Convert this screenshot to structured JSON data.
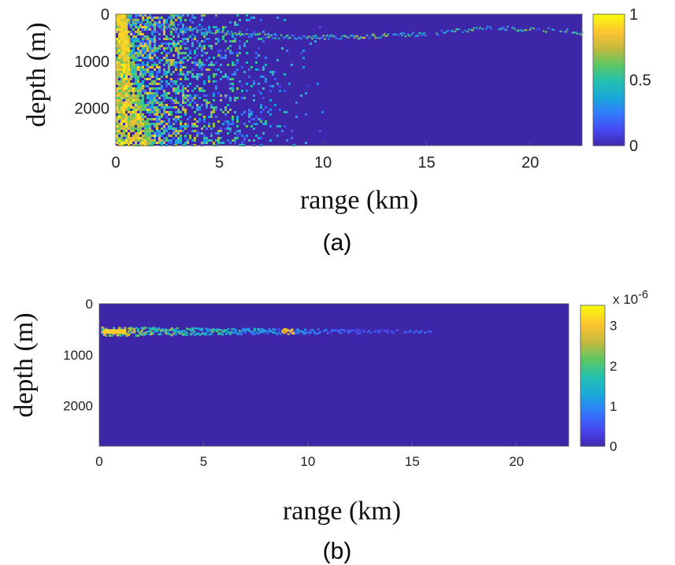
{
  "colors": {
    "background_field": "#3b2c93",
    "colormap": [
      "#3e26a8",
      "#4847ef",
      "#3377fd",
      "#1aa7da",
      "#23c0b2",
      "#5cc663",
      "#c3b93f",
      "#fdc330",
      "#f8f80f"
    ]
  },
  "chart_data": [
    {
      "type": "heatmap",
      "panel_caption": "(a)",
      "xlabel": "range (km)",
      "ylabel": "depth (m)",
      "xlim": [
        0,
        22.5
      ],
      "ylim": [
        0,
        2800
      ],
      "y_reversed": true,
      "xticks": [
        0,
        5,
        10,
        15,
        20
      ],
      "yticks": [
        0,
        1000,
        2000
      ],
      "colorbar": {
        "range": [
          0,
          1
        ],
        "ticks": [
          0,
          0.5,
          1
        ],
        "tick_labels": [
          "0",
          "0.5",
          "1"
        ],
        "exponent_label": ""
      },
      "features": [
        {
          "kind": "wedge",
          "description_value": "near-source cone",
          "x_range": [
            0,
            1.6
          ],
          "depth_range": [
            0,
            2800
          ],
          "peak_value": 1.0
        },
        {
          "kind": "scatter_fan",
          "x_range": [
            0,
            11
          ],
          "depth_range": [
            0,
            2800
          ],
          "mean_value": 0.25
        },
        {
          "kind": "channel_ray",
          "x_range": [
            0,
            22.5
          ],
          "depth_path": [
            [
              0,
              80
            ],
            [
              3,
              280
            ],
            [
              6,
              420
            ],
            [
              9,
              480
            ],
            [
              12,
              460
            ],
            [
              15,
              400
            ],
            [
              18,
              280
            ],
            [
              21,
              320
            ],
            [
              22.5,
              380
            ]
          ],
          "mean_value": 0.35
        }
      ]
    },
    {
      "type": "heatmap",
      "panel_caption": "(b)",
      "xlabel": "range (km)",
      "ylabel": "depth (m)",
      "xlim": [
        0,
        22.5
      ],
      "ylim": [
        0,
        2800
      ],
      "y_reversed": true,
      "xticks": [
        0,
        5,
        10,
        15,
        20
      ],
      "yticks": [
        0,
        1000,
        2000
      ],
      "colorbar": {
        "range": [
          0,
          3.5e-06
        ],
        "ticks": [
          0,
          1e-06,
          2e-06,
          3e-06
        ],
        "tick_labels": [
          "0",
          "1",
          "2",
          "3"
        ],
        "exponent_label": "x 10",
        "exponent_power": "-6"
      },
      "features": [
        {
          "kind": "energy_streak",
          "x_range": [
            0,
            16
          ],
          "depth_center": 530,
          "depth_halfwidth_start": 90,
          "depth_halfwidth_end": 20,
          "peak_value": 3.3e-06
        }
      ]
    }
  ]
}
